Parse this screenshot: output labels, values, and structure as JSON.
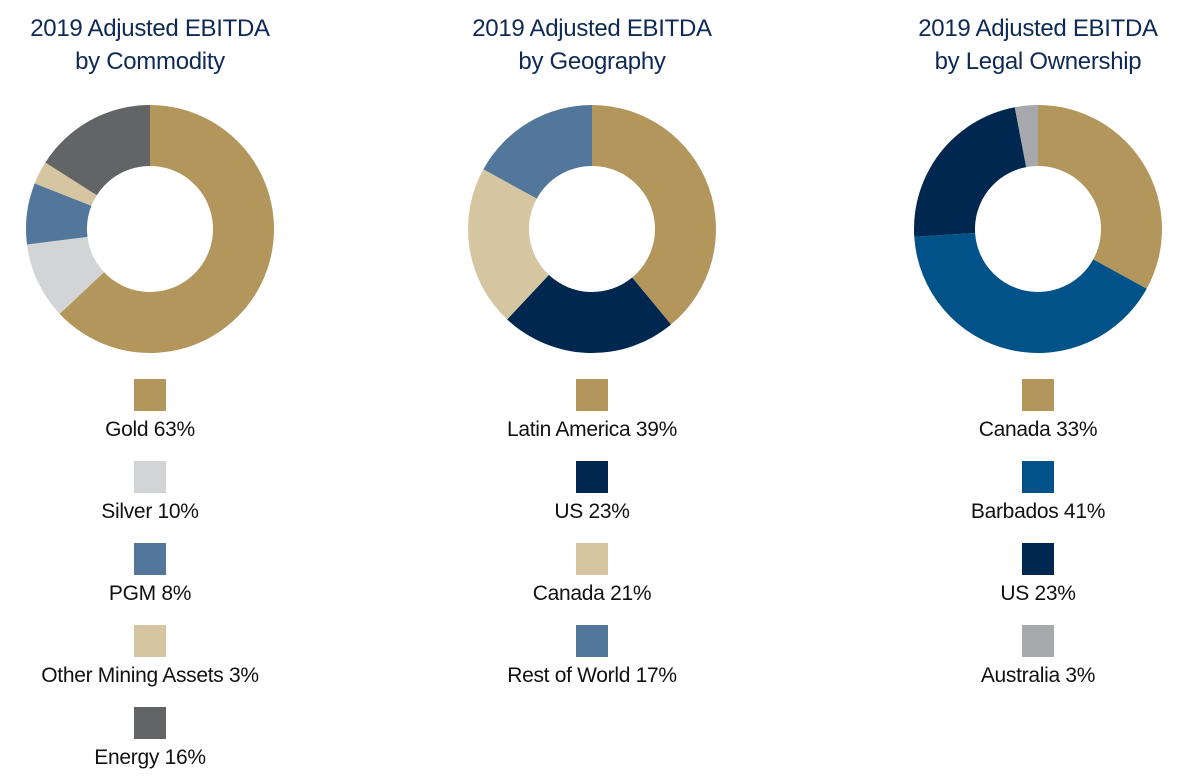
{
  "chart_data": [
    {
      "type": "pie",
      "variant": "donut",
      "title": "2019 Adjusted EBITDA by Commodity",
      "title_lines": [
        "2019 Adjusted EBITDA",
        "by Commodity"
      ],
      "start": "12 o'clock",
      "direction": "clockwise",
      "legend_position": "bottom",
      "slices": [
        {
          "label": "Gold",
          "value": 63,
          "legend": "Gold 63%",
          "color": "#b3965b"
        },
        {
          "label": "Silver",
          "value": 10,
          "legend": "Silver 10%",
          "color": "#d3d4d6"
        },
        {
          "label": "PGM",
          "value": 8,
          "legend": "PGM 8%",
          "color": "#53779b"
        },
        {
          "label": "Other Mining Assets",
          "value": 3,
          "legend": "Other Mining Assets 3%",
          "color": "#d5c6a1"
        },
        {
          "label": "Energy",
          "value": 16,
          "legend": "Energy 16%",
          "color": "#636466"
        }
      ]
    },
    {
      "type": "pie",
      "variant": "donut",
      "title": "2019 Adjusted EBITDA by Geography",
      "title_lines": [
        "2019 Adjusted EBITDA",
        "by Geography"
      ],
      "start": "12 o'clock",
      "direction": "clockwise",
      "legend_position": "bottom",
      "slices": [
        {
          "label": "Latin America",
          "value": 39,
          "legend": "Latin America 39%",
          "color": "#b3965b"
        },
        {
          "label": "US",
          "value": 23,
          "legend": "US 23%",
          "color": "#00274f"
        },
        {
          "label": "Canada",
          "value": 21,
          "legend": "Canada 21%",
          "color": "#d5c6a1"
        },
        {
          "label": "Rest of World",
          "value": 17,
          "legend": "Rest of World 17%",
          "color": "#53779b"
        }
      ]
    },
    {
      "type": "pie",
      "variant": "donut",
      "title": "2019 Adjusted EBITDA by Legal Ownership",
      "title_lines": [
        "2019 Adjusted EBITDA",
        "by Legal Ownership"
      ],
      "start": "12 o'clock",
      "direction": "clockwise",
      "legend_position": "bottom",
      "slices": [
        {
          "label": "Canada",
          "value": 33,
          "legend": "Canada 33%",
          "color": "#b3965b"
        },
        {
          "label": "Barbados",
          "value": 41,
          "legend": "Barbados 41%",
          "color": "#02528a"
        },
        {
          "label": "US",
          "value": 23,
          "legend": "US 23%",
          "color": "#00274f"
        },
        {
          "label": "Australia",
          "value": 3,
          "legend": "Australia 3%",
          "color": "#a7a8ab"
        }
      ]
    }
  ],
  "colors": {
    "title": "#0e2a54",
    "legend_text": "#111111"
  }
}
